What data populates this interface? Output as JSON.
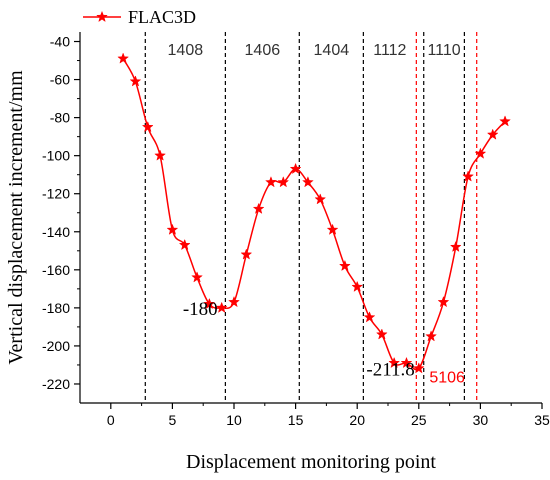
{
  "chart_data": {
    "type": "line",
    "xlabel": "Displacement monitoring point",
    "ylabel": "Vertical displacement increment/mm",
    "xlim": [
      -2.5,
      35
    ],
    "ylim": [
      -230,
      -35
    ],
    "xticks": [
      0,
      5,
      10,
      15,
      20,
      25,
      30,
      35
    ],
    "yticks": [
      -40,
      -60,
      -80,
      -100,
      -120,
      -140,
      -160,
      -180,
      -200,
      -220
    ],
    "grid": false,
    "legend_position": "top-left",
    "series": [
      {
        "name": "FLAC3D",
        "color": "#ff0000",
        "marker": "star",
        "x": [
          1,
          2,
          3,
          4,
          5,
          6,
          7,
          8,
          9,
          10,
          11,
          12,
          13,
          14,
          15,
          16,
          17,
          18,
          19,
          20,
          21,
          22,
          23,
          24,
          25,
          26,
          27,
          28,
          29,
          30,
          31,
          32
        ],
        "values": [
          -49,
          -61,
          -85,
          -100,
          -139,
          -147,
          -164,
          -178,
          -180,
          -177,
          -152,
          -128,
          -114,
          -114,
          -107,
          -114,
          -123,
          -139,
          -158,
          -169,
          -185,
          -194,
          -209,
          -209,
          -211.8,
          -195,
          -177,
          -148,
          -111,
          -99,
          -89,
          -82
        ]
      }
    ],
    "region_lines": [
      {
        "x": 2.8,
        "color": "#000000",
        "label": "1408"
      },
      {
        "x": 9.3,
        "color": "#000000",
        "label": "1406"
      },
      {
        "x": 15.3,
        "color": "#000000",
        "label": "1404"
      },
      {
        "x": 20.5,
        "color": "#000000",
        "label": "1112"
      },
      {
        "x": 25.4,
        "color": "#000000",
        "label": "1110"
      },
      {
        "x": 28.7,
        "color": "#000000",
        "label": ""
      },
      {
        "x": 24.8,
        "color": "#ff0000",
        "label": ""
      },
      {
        "x": 29.7,
        "color": "#ff0000",
        "label": ""
      }
    ],
    "annotations": [
      {
        "text": "-180",
        "x": 9,
        "y": -180,
        "color": "#000000"
      },
      {
        "text": "-211.8",
        "x": 25,
        "y": -211.8,
        "color": "#000000"
      },
      {
        "text": "5106",
        "x": 27.3,
        "y": -216,
        "color": "#ff0000"
      }
    ]
  }
}
